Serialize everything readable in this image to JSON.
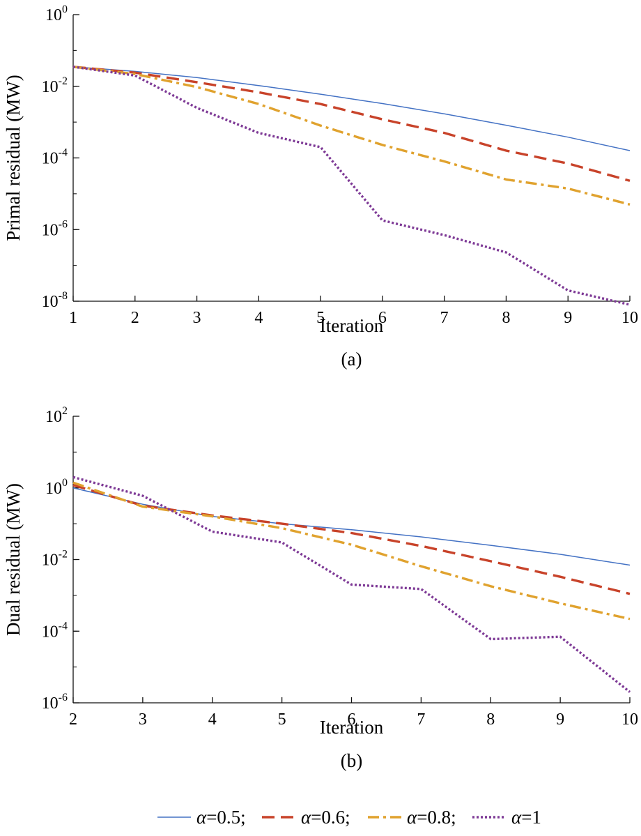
{
  "chart_data": [
    {
      "type": "line",
      "caption": "(a)",
      "xlabel": "Iteration",
      "ylabel": "Primal residual (MW)",
      "yscale": "log",
      "xlim": [
        1,
        10
      ],
      "ylim": [
        1e-08,
        1
      ],
      "x_ticks": [
        1,
        2,
        3,
        4,
        5,
        6,
        7,
        8,
        9,
        10
      ],
      "y_ticks": [
        {
          "base": "10",
          "exp": "0"
        },
        {
          "base": "10",
          "exp": "-2"
        },
        {
          "base": "10",
          "exp": "-4"
        },
        {
          "base": "10",
          "exp": "-6"
        },
        {
          "base": "10",
          "exp": "-8"
        }
      ],
      "y_tick_values": [
        1,
        0.01,
        0.0001,
        1e-06,
        1e-08
      ],
      "grid": false,
      "x": [
        1,
        2,
        3,
        4,
        5,
        6,
        7,
        8,
        9,
        10
      ],
      "series": [
        {
          "name": "α=0.5",
          "color": "#4472c4",
          "style": "solid",
          "values": [
            0.035,
            0.026,
            0.0175,
            0.0105,
            0.006,
            0.0033,
            0.0017,
            0.00082,
            0.00038,
            0.00016
          ]
        },
        {
          "name": "α=0.6",
          "color": "#c8432a",
          "style": "dashed",
          "values": [
            0.035,
            0.024,
            0.013,
            0.0068,
            0.0032,
            0.0012,
            0.0005,
            0.00016,
            7e-05,
            2.3e-05
          ]
        },
        {
          "name": "α=0.8",
          "color": "#e0a22e",
          "style": "dashdot",
          "values": [
            0.035,
            0.022,
            0.0095,
            0.0032,
            0.0008,
            0.00023,
            8e-05,
            2.5e-05,
            1.4e-05,
            5e-06
          ]
        },
        {
          "name": "α=1",
          "color": "#7e3a96",
          "style": "dotted",
          "values": [
            0.035,
            0.02,
            0.0025,
            0.0005,
            0.0002,
            1.8e-06,
            7e-07,
            2.3e-07,
            2e-08,
            8e-09
          ]
        }
      ]
    },
    {
      "type": "line",
      "caption": "(b)",
      "xlabel": "Iteration",
      "ylabel": "Dual residual (MW)",
      "yscale": "log",
      "xlim": [
        2,
        10
      ],
      "ylim": [
        1e-06,
        100
      ],
      "x_ticks": [
        2,
        3,
        4,
        5,
        6,
        7,
        8,
        9,
        10
      ],
      "y_ticks": [
        {
          "base": "10",
          "exp": "2"
        },
        {
          "base": "10",
          "exp": "0"
        },
        {
          "base": "10",
          "exp": "-2"
        },
        {
          "base": "10",
          "exp": "-4"
        },
        {
          "base": "10",
          "exp": "-6"
        }
      ],
      "y_tick_values": [
        100,
        1,
        0.01,
        0.0001,
        1e-06
      ],
      "grid": false,
      "x": [
        2,
        3,
        4,
        5,
        6,
        7,
        8,
        9,
        10
      ],
      "series": [
        {
          "name": "α=0.5",
          "color": "#4472c4",
          "style": "solid",
          "values": [
            1.0,
            0.35,
            0.16,
            0.1,
            0.068,
            0.043,
            0.025,
            0.014,
            0.007
          ]
        },
        {
          "name": "α=0.6",
          "color": "#c8432a",
          "style": "dashed",
          "values": [
            1.2,
            0.32,
            0.17,
            0.1,
            0.055,
            0.024,
            0.009,
            0.0033,
            0.0011
          ]
        },
        {
          "name": "α=0.8",
          "color": "#e0a22e",
          "style": "dashdot",
          "values": [
            1.4,
            0.3,
            0.16,
            0.075,
            0.026,
            0.0065,
            0.0018,
            0.0006,
            0.00022
          ]
        },
        {
          "name": "α=1",
          "color": "#7e3a96",
          "style": "dotted",
          "values": [
            2.0,
            0.6,
            0.06,
            0.03,
            0.002,
            0.0015,
            6e-05,
            7e-05,
            2e-06
          ]
        }
      ]
    }
  ],
  "legend": {
    "position": "bottom",
    "items": [
      {
        "symbol": "α",
        "value": "=0.5;",
        "color": "#4472c4",
        "style": "solid"
      },
      {
        "symbol": "α",
        "value": "=0.6;",
        "color": "#c8432a",
        "style": "dashed"
      },
      {
        "symbol": "α",
        "value": "=0.8;",
        "color": "#e0a22e",
        "style": "dashdot"
      },
      {
        "symbol": "α",
        "value": "=1",
        "color": "#7e3a96",
        "style": "dotted"
      }
    ]
  }
}
